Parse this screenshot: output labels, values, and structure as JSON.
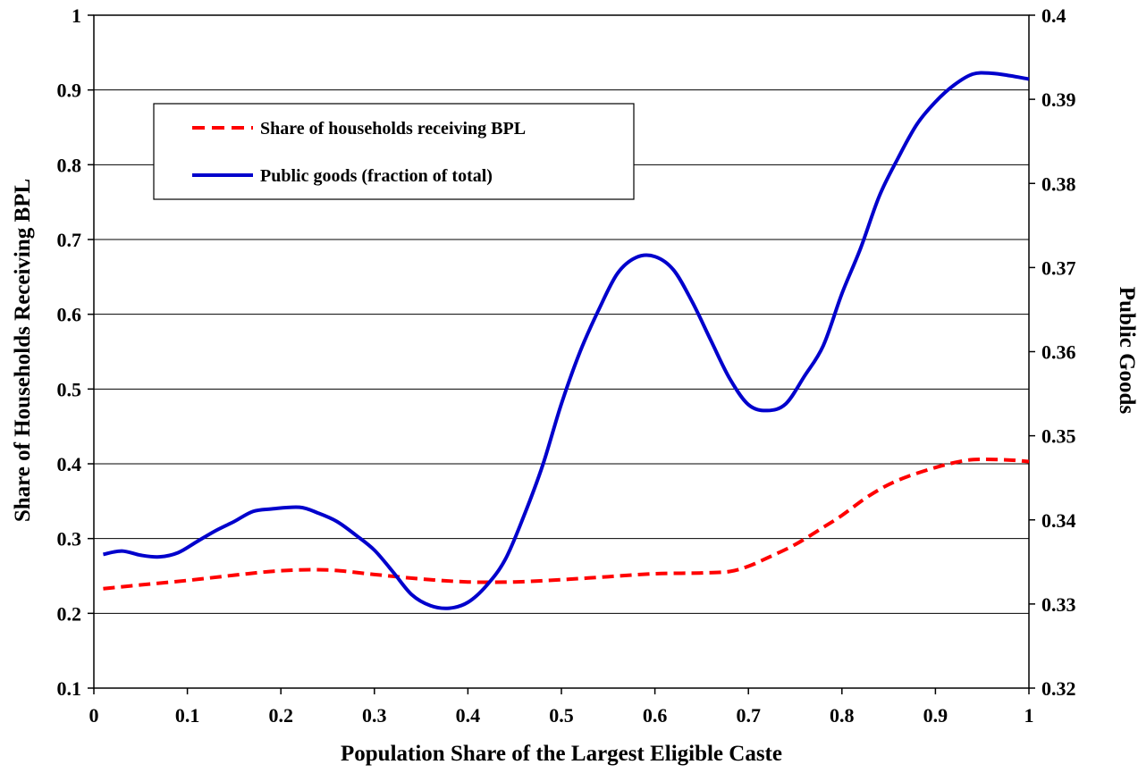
{
  "chart_data": {
    "type": "line",
    "xlabel": "Population Share of the Largest Eligible Caste",
    "ylabel": "Share of Households Receiving BPL",
    "y2label": "Public Goods",
    "xlim": [
      0,
      1
    ],
    "ylim": [
      0.1,
      1
    ],
    "y2lim": [
      0.32,
      0.4
    ],
    "x_ticks": [
      "0",
      "0.1",
      "0.2",
      "0.3",
      "0.4",
      "0.5",
      "0.6",
      "0.7",
      "0.8",
      "0.9",
      "1"
    ],
    "y_ticks": [
      "0.1",
      "0.2",
      "0.3",
      "0.4",
      "0.5",
      "0.6",
      "0.7",
      "0.8",
      "0.9",
      "1"
    ],
    "y2_ticks": [
      "0.32",
      "0.33",
      "0.34",
      "0.35",
      "0.36",
      "0.37",
      "0.38",
      "0.39",
      "0.4"
    ],
    "grid": "horizontal",
    "legend_position": "top-left",
    "series": [
      {
        "name": "Share of households receiving BPL",
        "axis": "left",
        "color": "#ff0000",
        "style": "dashed",
        "points": [
          [
            0.01,
            0.233
          ],
          [
            0.05,
            0.238
          ],
          [
            0.1,
            0.244
          ],
          [
            0.15,
            0.251
          ],
          [
            0.2,
            0.257
          ],
          [
            0.25,
            0.258
          ],
          [
            0.3,
            0.252
          ],
          [
            0.35,
            0.246
          ],
          [
            0.4,
            0.242
          ],
          [
            0.45,
            0.242
          ],
          [
            0.5,
            0.245
          ],
          [
            0.55,
            0.249
          ],
          [
            0.6,
            0.253
          ],
          [
            0.65,
            0.254
          ],
          [
            0.68,
            0.256
          ],
          [
            0.7,
            0.263
          ],
          [
            0.72,
            0.274
          ],
          [
            0.75,
            0.292
          ],
          [
            0.78,
            0.315
          ],
          [
            0.8,
            0.331
          ],
          [
            0.83,
            0.358
          ],
          [
            0.86,
            0.378
          ],
          [
            0.9,
            0.395
          ],
          [
            0.93,
            0.404
          ],
          [
            0.95,
            0.406
          ],
          [
            0.98,
            0.405
          ],
          [
            1.0,
            0.403
          ]
        ]
      },
      {
        "name": "Public goods (fraction of total)",
        "axis": "right",
        "color": "#0000cc",
        "style": "solid",
        "points": [
          [
            0.01,
            0.3359
          ],
          [
            0.03,
            0.3363
          ],
          [
            0.05,
            0.3358
          ],
          [
            0.07,
            0.3356
          ],
          [
            0.09,
            0.3361
          ],
          [
            0.11,
            0.3374
          ],
          [
            0.13,
            0.3387
          ],
          [
            0.15,
            0.3398
          ],
          [
            0.17,
            0.341
          ],
          [
            0.19,
            0.3413
          ],
          [
            0.22,
            0.3415
          ],
          [
            0.24,
            0.3408
          ],
          [
            0.26,
            0.3398
          ],
          [
            0.28,
            0.3382
          ],
          [
            0.3,
            0.3364
          ],
          [
            0.32,
            0.3338
          ],
          [
            0.34,
            0.3311
          ],
          [
            0.36,
            0.3298
          ],
          [
            0.38,
            0.3295
          ],
          [
            0.4,
            0.3302
          ],
          [
            0.42,
            0.3322
          ],
          [
            0.44,
            0.3353
          ],
          [
            0.46,
            0.3405
          ],
          [
            0.48,
            0.3465
          ],
          [
            0.5,
            0.3538
          ],
          [
            0.52,
            0.36
          ],
          [
            0.54,
            0.365
          ],
          [
            0.56,
            0.3693
          ],
          [
            0.58,
            0.3712
          ],
          [
            0.6,
            0.3713
          ],
          [
            0.62,
            0.3697
          ],
          [
            0.64,
            0.3659
          ],
          [
            0.66,
            0.3613
          ],
          [
            0.68,
            0.3568
          ],
          [
            0.7,
            0.3537
          ],
          [
            0.72,
            0.353
          ],
          [
            0.74,
            0.3538
          ],
          [
            0.76,
            0.3571
          ],
          [
            0.78,
            0.3607
          ],
          [
            0.8,
            0.3669
          ],
          [
            0.82,
            0.3723
          ],
          [
            0.84,
            0.3785
          ],
          [
            0.86,
            0.383
          ],
          [
            0.88,
            0.387
          ],
          [
            0.9,
            0.3897
          ],
          [
            0.92,
            0.3917
          ],
          [
            0.94,
            0.393
          ],
          [
            0.96,
            0.3931
          ],
          [
            0.98,
            0.3928
          ],
          [
            1.0,
            0.3924
          ]
        ]
      }
    ]
  }
}
